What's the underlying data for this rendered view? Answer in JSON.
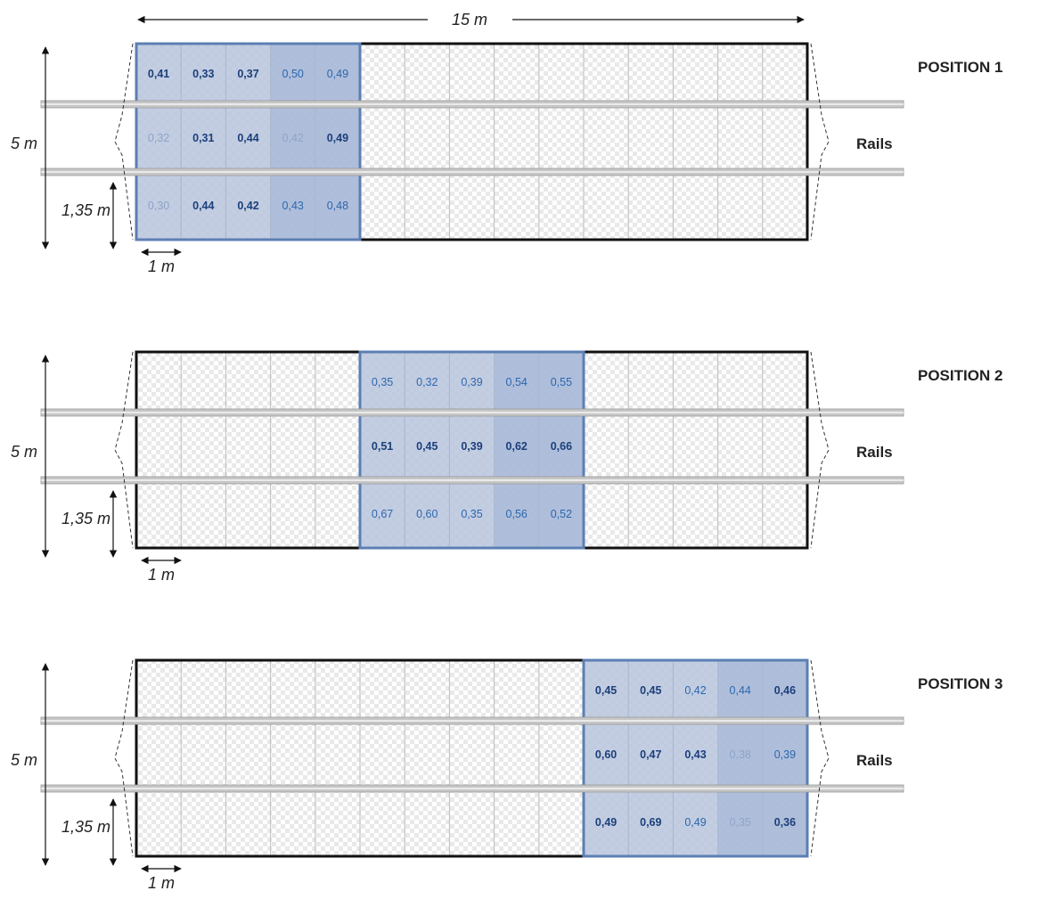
{
  "top_dimension": "15 m",
  "side_dimension": "5 m",
  "rail_offset_dimension": "1,35 m",
  "cell_dimension": "1 m",
  "rails_label": "Rails",
  "colors": {
    "measure_fill_light": "#b8c6de",
    "measure_fill_dark": "#9fb2d6",
    "measure_border": "#5b7fb3",
    "text_dark": "#1c3f7a",
    "text_medium": "#2d67ad",
    "text_faint": "#8fa4c8",
    "rail": "#c7c7c7",
    "checker": "#e9e9e9"
  },
  "positions": [
    {
      "title": "POSITION 1",
      "start_cell": 0,
      "values": [
        [
          "0,41",
          "0,33",
          "0,37",
          "0,50",
          "0,49"
        ],
        [
          "0,32",
          "0,31",
          "0,44",
          "0,42",
          "0,49"
        ],
        [
          "0,30",
          "0,44",
          "0,42",
          "0,43",
          "0,48"
        ]
      ],
      "styles": [
        [
          "dark",
          "dark",
          "dark",
          "medium",
          "medium"
        ],
        [
          "faint",
          "dark",
          "dark",
          "faint",
          "dark"
        ],
        [
          "faint",
          "dark",
          "dark",
          "medium",
          "medium"
        ]
      ]
    },
    {
      "title": "POSITION 2",
      "start_cell": 5,
      "values": [
        [
          "0,35",
          "0,32",
          "0,39",
          "0,54",
          "0,55"
        ],
        [
          "0,51",
          "0,45",
          "0,39",
          "0,62",
          "0,66"
        ],
        [
          "0,67",
          "0,60",
          "0,35",
          "0,56",
          "0,52"
        ]
      ],
      "styles": [
        [
          "medium",
          "medium",
          "medium",
          "medium",
          "medium"
        ],
        [
          "dark",
          "dark",
          "dark",
          "dark",
          "dark"
        ],
        [
          "medium",
          "medium",
          "medium",
          "medium",
          "medium"
        ]
      ]
    },
    {
      "title": "POSITION 3",
      "start_cell": 10,
      "values": [
        [
          "0,45",
          "0,45",
          "0,42",
          "0,44",
          "0,46"
        ],
        [
          "0,60",
          "0,47",
          "0,43",
          "0,38",
          "0,39"
        ],
        [
          "0,49",
          "0,69",
          "0,49",
          "0,35",
          "0,36"
        ]
      ],
      "styles": [
        [
          "dark",
          "dark",
          "medium",
          "medium",
          "dark"
        ],
        [
          "dark",
          "dark",
          "dark",
          "faint",
          "medium"
        ],
        [
          "dark",
          "dark",
          "medium",
          "faint",
          "dark"
        ]
      ]
    }
  ]
}
